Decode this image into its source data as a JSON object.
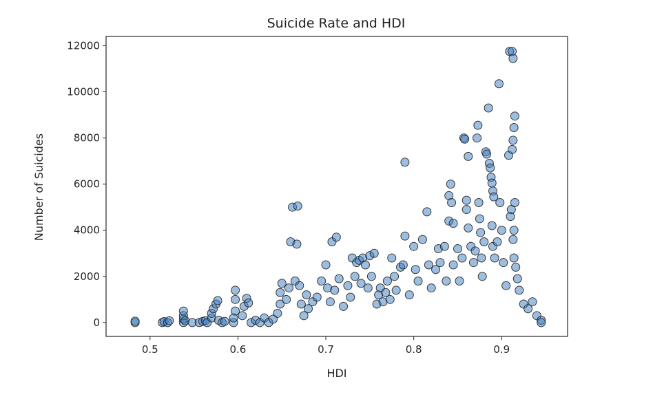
{
  "chart_data": {
    "type": "scatter",
    "title": "Suicide Rate and HDI",
    "xlabel": "HDI",
    "ylabel": "Number of Suicides",
    "xlim": [
      0.45,
      0.975
    ],
    "ylim": [
      -600,
      12400
    ],
    "xticks": [
      0.5,
      0.6,
      0.7,
      0.8,
      0.9
    ],
    "xtick_labels": [
      "0.5",
      "0.6",
      "0.7",
      "0.8",
      "0.9"
    ],
    "yticks": [
      0,
      2000,
      4000,
      6000,
      8000,
      10000,
      12000
    ],
    "ytick_labels": [
      "0",
      "2000",
      "4000",
      "6000",
      "8000",
      "10000",
      "12000"
    ],
    "grid": false,
    "marker_color": "#3d7ec1",
    "marker_edge_color": "#1a1a1a",
    "points": [
      [
        0.483,
        0
      ],
      [
        0.483,
        60
      ],
      [
        0.514,
        0
      ],
      [
        0.516,
        40
      ],
      [
        0.52,
        0
      ],
      [
        0.522,
        80
      ],
      [
        0.538,
        0
      ],
      [
        0.538,
        150
      ],
      [
        0.538,
        300
      ],
      [
        0.538,
        500
      ],
      [
        0.54,
        80
      ],
      [
        0.548,
        0
      ],
      [
        0.556,
        0
      ],
      [
        0.56,
        50
      ],
      [
        0.563,
        80
      ],
      [
        0.565,
        0
      ],
      [
        0.57,
        200
      ],
      [
        0.57,
        400
      ],
      [
        0.572,
        600
      ],
      [
        0.575,
        800
      ],
      [
        0.577,
        950
      ],
      [
        0.578,
        100
      ],
      [
        0.582,
        0
      ],
      [
        0.585,
        50
      ],
      [
        0.595,
        0
      ],
      [
        0.595,
        200
      ],
      [
        0.597,
        500
      ],
      [
        0.597,
        1000
      ],
      [
        0.597,
        1400
      ],
      [
        0.605,
        300
      ],
      [
        0.607,
        700
      ],
      [
        0.61,
        1050
      ],
      [
        0.612,
        850
      ],
      [
        0.615,
        0
      ],
      [
        0.62,
        100
      ],
      [
        0.625,
        0
      ],
      [
        0.63,
        200
      ],
      [
        0.635,
        0
      ],
      [
        0.64,
        150
      ],
      [
        0.645,
        400
      ],
      [
        0.648,
        800
      ],
      [
        0.648,
        1300
      ],
      [
        0.65,
        1700
      ],
      [
        0.655,
        1000
      ],
      [
        0.658,
        1500
      ],
      [
        0.66,
        3500
      ],
      [
        0.662,
        5000
      ],
      [
        0.665,
        1800
      ],
      [
        0.667,
        3400
      ],
      [
        0.668,
        5050
      ],
      [
        0.67,
        1600
      ],
      [
        0.672,
        800
      ],
      [
        0.675,
        300
      ],
      [
        0.678,
        1200
      ],
      [
        0.68,
        600
      ],
      [
        0.685,
        900
      ],
      [
        0.69,
        1100
      ],
      [
        0.695,
        1800
      ],
      [
        0.7,
        2500
      ],
      [
        0.702,
        1500
      ],
      [
        0.705,
        900
      ],
      [
        0.707,
        3500
      ],
      [
        0.71,
        1400
      ],
      [
        0.712,
        3700
      ],
      [
        0.715,
        1900
      ],
      [
        0.72,
        700
      ],
      [
        0.725,
        1600
      ],
      [
        0.728,
        1100
      ],
      [
        0.73,
        2800
      ],
      [
        0.733,
        2000
      ],
      [
        0.735,
        2600
      ],
      [
        0.738,
        2700
      ],
      [
        0.74,
        1700
      ],
      [
        0.742,
        2800
      ],
      [
        0.745,
        2500
      ],
      [
        0.748,
        1500
      ],
      [
        0.75,
        2900
      ],
      [
        0.752,
        2000
      ],
      [
        0.755,
        3000
      ],
      [
        0.758,
        800
      ],
      [
        0.76,
        1200
      ],
      [
        0.762,
        1500
      ],
      [
        0.765,
        900
      ],
      [
        0.768,
        1300
      ],
      [
        0.77,
        1800
      ],
      [
        0.773,
        1000
      ],
      [
        0.775,
        2800
      ],
      [
        0.778,
        2000
      ],
      [
        0.78,
        1400
      ],
      [
        0.785,
        2400
      ],
      [
        0.788,
        2500
      ],
      [
        0.79,
        6950
      ],
      [
        0.79,
        3750
      ],
      [
        0.795,
        1200
      ],
      [
        0.8,
        3300
      ],
      [
        0.802,
        2300
      ],
      [
        0.805,
        1800
      ],
      [
        0.81,
        3600
      ],
      [
        0.815,
        4800
      ],
      [
        0.817,
        2500
      ],
      [
        0.82,
        1500
      ],
      [
        0.825,
        2300
      ],
      [
        0.828,
        3200
      ],
      [
        0.83,
        2600
      ],
      [
        0.835,
        3300
      ],
      [
        0.837,
        1800
      ],
      [
        0.84,
        4400
      ],
      [
        0.84,
        5500
      ],
      [
        0.842,
        6000
      ],
      [
        0.843,
        5200
      ],
      [
        0.845,
        4300
      ],
      [
        0.845,
        2500
      ],
      [
        0.85,
        3200
      ],
      [
        0.852,
        1800
      ],
      [
        0.855,
        2800
      ],
      [
        0.857,
        8000
      ],
      [
        0.858,
        7950
      ],
      [
        0.86,
        5300
      ],
      [
        0.86,
        4900
      ],
      [
        0.862,
        7200
      ],
      [
        0.862,
        4100
      ],
      [
        0.865,
        3300
      ],
      [
        0.868,
        2600
      ],
      [
        0.87,
        3100
      ],
      [
        0.872,
        8000
      ],
      [
        0.873,
        8550
      ],
      [
        0.874,
        5200
      ],
      [
        0.875,
        4500
      ],
      [
        0.876,
        3900
      ],
      [
        0.877,
        2800
      ],
      [
        0.878,
        2000
      ],
      [
        0.88,
        3500
      ],
      [
        0.882,
        7400
      ],
      [
        0.883,
        7300
      ],
      [
        0.885,
        9300
      ],
      [
        0.886,
        6900
      ],
      [
        0.887,
        6700
      ],
      [
        0.888,
        6300
      ],
      [
        0.889,
        6050
      ],
      [
        0.89,
        5700
      ],
      [
        0.891,
        5450
      ],
      [
        0.889,
        4200
      ],
      [
        0.89,
        3300
      ],
      [
        0.892,
        2800
      ],
      [
        0.895,
        3500
      ],
      [
        0.897,
        10350
      ],
      [
        0.898,
        5200
      ],
      [
        0.9,
        4000
      ],
      [
        0.902,
        2600
      ],
      [
        0.905,
        1600
      ],
      [
        0.908,
        7250
      ],
      [
        0.909,
        11750
      ],
      [
        0.91,
        4600
      ],
      [
        0.911,
        4900
      ],
      [
        0.912,
        11750
      ],
      [
        0.913,
        11450
      ],
      [
        0.912,
        7500
      ],
      [
        0.913,
        7900
      ],
      [
        0.914,
        8450
      ],
      [
        0.915,
        8950
      ],
      [
        0.915,
        5200
      ],
      [
        0.914,
        4000
      ],
      [
        0.913,
        3600
      ],
      [
        0.914,
        2800
      ],
      [
        0.916,
        2400
      ],
      [
        0.918,
        1900
      ],
      [
        0.92,
        1400
      ],
      [
        0.925,
        800
      ],
      [
        0.93,
        600
      ],
      [
        0.935,
        900
      ],
      [
        0.94,
        300
      ],
      [
        0.945,
        100
      ],
      [
        0.945,
        0
      ]
    ]
  }
}
